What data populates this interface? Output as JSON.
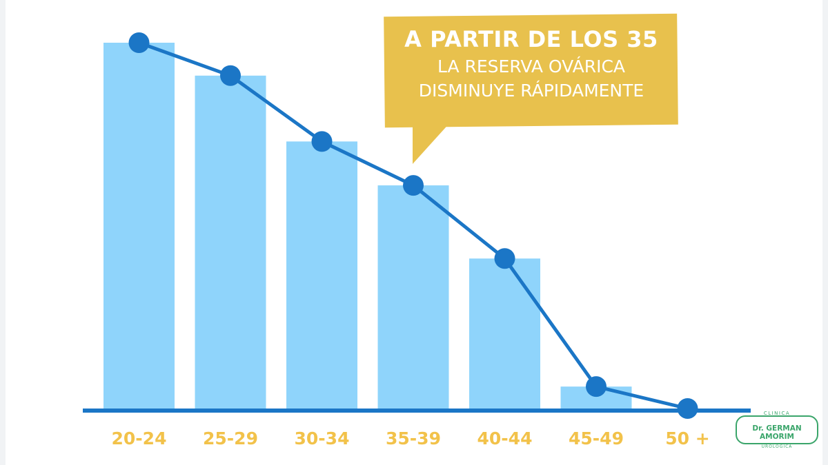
{
  "chart_data": {
    "type": "bar",
    "categories": [
      "20-24",
      "25-29",
      "30-34",
      "35-39",
      "40-44",
      "45-49",
      "50 +"
    ],
    "values": [
      100,
      91,
      73,
      61,
      41,
      6,
      0
    ],
    "line_values": [
      100,
      91,
      73,
      61,
      41,
      6,
      0
    ],
    "title": "",
    "xlabel": "",
    "ylabel": "",
    "ylim": [
      0,
      100
    ],
    "grid": false,
    "legend": "none",
    "colors": {
      "bar": "#8fd4fb",
      "line": "#1b76c6",
      "axis": "#1b76c6",
      "tick_label": "#f2c24a"
    }
  },
  "callout": {
    "line1": "A PARTIR DE LOS 35",
    "line2": "LA RESERVA OVÁRICA",
    "line3": "DISMINUYE RÁPIDAMENTE",
    "color": "#e8c14d"
  },
  "logo": {
    "top": "CLINICA",
    "main": "Dr. GERMAN AMORIM",
    "bottom": "UROLOGICA",
    "color": "#3aa56a"
  }
}
